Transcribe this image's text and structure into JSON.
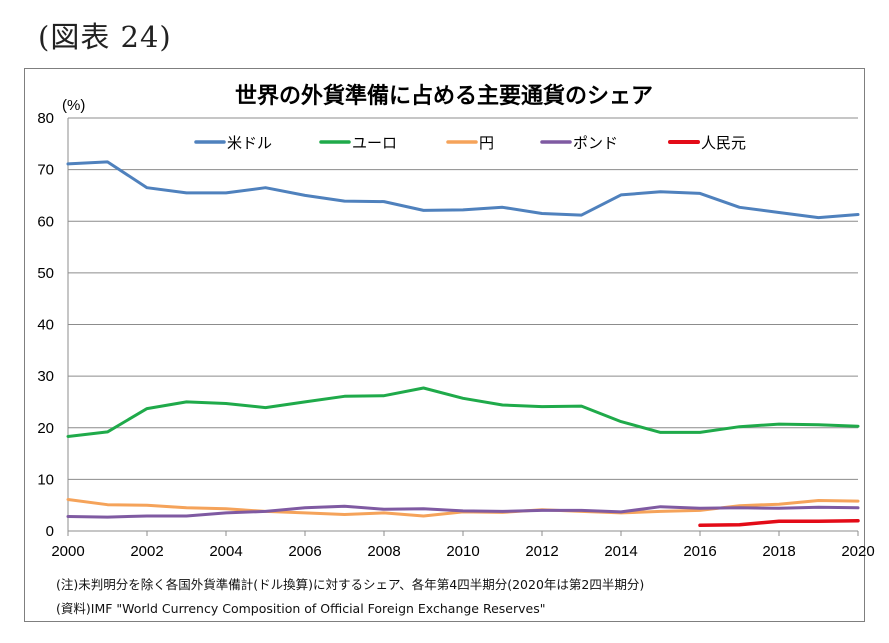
{
  "figure_label": "(図表 24)",
  "notes": {
    "note": "(注)未判明分を除く各国外貨準備計(ドル換算)に対するシェア、各年第4四半期分(2020年は第2四半期分)",
    "source": "(資料)IMF \"World Currency Composition of Official Foreign Exchange Reserves\""
  },
  "chart_data": {
    "type": "line",
    "title": "世界の外貨準備に占める主要通貨のシェア",
    "unit_label": "(%)",
    "xlabel": "",
    "ylabel": "",
    "ylim": [
      0,
      80
    ],
    "yticks": [
      0,
      10,
      20,
      30,
      40,
      50,
      60,
      70,
      80
    ],
    "xlim": [
      2000,
      2020
    ],
    "xticks": [
      2000,
      2002,
      2004,
      2006,
      2008,
      2010,
      2012,
      2014,
      2016,
      2018,
      2020
    ],
    "grid": "horizontal",
    "legend_position": "top",
    "series": [
      {
        "name": "米ドル",
        "color": "#4f81bd",
        "x": [
          2000,
          2001,
          2002,
          2003,
          2004,
          2005,
          2006,
          2007,
          2008,
          2009,
          2010,
          2011,
          2012,
          2013,
          2014,
          2015,
          2016,
          2017,
          2018,
          2019,
          2020
        ],
        "values": [
          71.1,
          71.5,
          66.5,
          65.5,
          65.5,
          66.5,
          65.0,
          63.9,
          63.8,
          62.1,
          62.2,
          62.7,
          61.5,
          61.2,
          65.1,
          65.7,
          65.4,
          62.7,
          61.7,
          60.7,
          61.3
        ]
      },
      {
        "name": "ユーロ",
        "color": "#1faa4a",
        "x": [
          2000,
          2001,
          2002,
          2003,
          2004,
          2005,
          2006,
          2007,
          2008,
          2009,
          2010,
          2011,
          2012,
          2013,
          2014,
          2015,
          2016,
          2017,
          2018,
          2019,
          2020
        ],
        "values": [
          18.3,
          19.2,
          23.7,
          25.0,
          24.7,
          23.9,
          25.0,
          26.1,
          26.2,
          27.7,
          25.7,
          24.4,
          24.1,
          24.2,
          21.2,
          19.1,
          19.1,
          20.2,
          20.7,
          20.6,
          20.3
        ]
      },
      {
        "name": "円",
        "color": "#f5a35a",
        "x": [
          2000,
          2001,
          2002,
          2003,
          2004,
          2005,
          2006,
          2007,
          2008,
          2009,
          2010,
          2011,
          2012,
          2013,
          2014,
          2015,
          2016,
          2017,
          2018,
          2019,
          2020
        ],
        "values": [
          6.1,
          5.1,
          5.0,
          4.5,
          4.3,
          3.8,
          3.5,
          3.2,
          3.5,
          2.9,
          3.7,
          3.6,
          4.1,
          3.8,
          3.5,
          3.8,
          4.0,
          4.9,
          5.2,
          5.9,
          5.8
        ]
      },
      {
        "name": "ポンド",
        "color": "#7f5aa2",
        "x": [
          2000,
          2001,
          2002,
          2003,
          2004,
          2005,
          2006,
          2007,
          2008,
          2009,
          2010,
          2011,
          2012,
          2013,
          2014,
          2015,
          2016,
          2017,
          2018,
          2019,
          2020
        ],
        "values": [
          2.8,
          2.7,
          2.9,
          2.9,
          3.5,
          3.8,
          4.5,
          4.8,
          4.2,
          4.3,
          3.9,
          3.8,
          4.0,
          4.0,
          3.7,
          4.7,
          4.4,
          4.5,
          4.4,
          4.6,
          4.5
        ]
      },
      {
        "name": "人民元",
        "color": "#e30b17",
        "x": [
          2016,
          2017,
          2018,
          2019,
          2020
        ],
        "values": [
          1.1,
          1.2,
          1.9,
          1.9,
          2.0
        ]
      }
    ]
  }
}
